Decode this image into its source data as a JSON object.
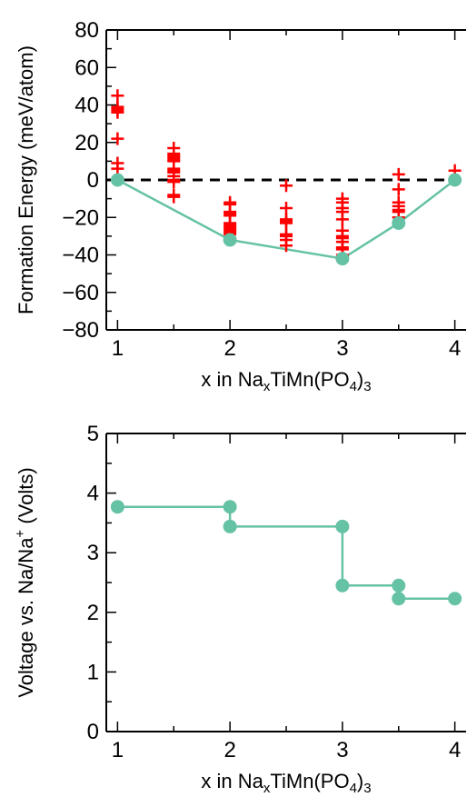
{
  "chart_data": [
    {
      "type": "scatter",
      "xlabel": {
        "prefix": "x in Na",
        "sub1": "x",
        "mid": "TiMn(PO",
        "sub2": "4",
        "suffix": ")",
        "sub3": "3"
      },
      "ylabel": "Formation Energy (meV/atom)",
      "xlim": [
        0.9,
        4.1
      ],
      "ylim": [
        -80,
        80
      ],
      "xticks": [
        1,
        2,
        3,
        4
      ],
      "xtick_labels": [
        "1",
        "2",
        "3",
        "4"
      ],
      "yticks": [
        -80,
        -60,
        -40,
        -20,
        0,
        20,
        40,
        60,
        80
      ],
      "ytick_labels": [
        "−80",
        "−60",
        "−40",
        "−20",
        "0",
        "20",
        "40",
        "60",
        "80"
      ],
      "reference_line": {
        "y": 0,
        "style": "dashed",
        "color": "#000000"
      },
      "colors": {
        "structures": "#ff0000",
        "hull": "#66c2a5"
      },
      "series": [
        {
          "marker": "plus",
          "x": [
            1,
            1,
            1,
            1,
            1,
            1,
            1,
            1,
            1,
            1.5,
            1.5,
            1.5,
            1.5,
            1.5,
            1.5,
            1.5,
            1.5,
            1.5,
            1.5,
            1.5,
            1.5,
            1.5,
            1.5,
            2,
            2,
            2,
            2,
            2,
            2,
            2,
            2,
            2,
            2,
            2,
            2,
            2.5,
            2.5,
            2.5,
            2.5,
            2.5,
            2.5,
            2.5,
            2.5,
            2.5,
            3,
            3,
            3,
            3,
            3,
            3,
            3,
            3,
            3,
            3,
            3,
            3,
            3.5,
            3.5,
            3.5,
            3.5,
            3.5,
            3.5,
            3.5,
            3.5,
            4,
            4
          ],
          "y": [
            45,
            39,
            38,
            37,
            36,
            22,
            9,
            6,
            0,
            17,
            14,
            13,
            12,
            11,
            10,
            6,
            5,
            4,
            2,
            0,
            -1,
            -8,
            -9,
            -12,
            -13,
            -17,
            -18,
            -19,
            -23,
            -24,
            -25,
            -26,
            -27,
            -28,
            -29,
            -3,
            -15,
            -21,
            -22,
            -23,
            -29,
            -30,
            -32,
            -35,
            -10,
            -12,
            -15,
            -17,
            -21,
            -27,
            -30,
            -31,
            -33,
            -36,
            -37,
            -40,
            3,
            -5,
            -12,
            -14,
            -16,
            -17,
            -20,
            -23,
            5,
            0
          ]
        },
        {
          "marker": "circle",
          "line": true,
          "x": [
            1,
            2,
            3,
            3.5,
            4
          ],
          "y": [
            0,
            -32,
            -42,
            -23,
            0
          ]
        }
      ]
    },
    {
      "type": "line",
      "xlabel": {
        "prefix": "x in Na",
        "sub1": "x",
        "mid": "TiMn(PO",
        "sub2": "4",
        "suffix": ")",
        "sub3": "3"
      },
      "ylabel": {
        "prefix": "Voltage vs. Na/Na",
        "sup": "+",
        "suffix": " (Volts)"
      },
      "xlim": [
        0.9,
        4.1
      ],
      "ylim": [
        0,
        5
      ],
      "xticks": [
        1,
        2,
        3,
        4
      ],
      "xtick_labels": [
        "1",
        "2",
        "3",
        "4"
      ],
      "yticks": [
        0,
        1,
        2,
        3,
        4,
        5
      ],
      "ytick_labels": [
        "0",
        "1",
        "2",
        "3",
        "4",
        "5"
      ],
      "colors": {
        "profile": "#66c2a5"
      },
      "series": [
        {
          "marker": "circle",
          "line": true,
          "x": [
            1,
            2,
            2,
            3,
            3,
            3.5,
            3.5,
            4
          ],
          "y": [
            3.77,
            3.77,
            3.44,
            3.44,
            2.45,
            2.45,
            2.23,
            2.23
          ]
        }
      ]
    }
  ]
}
